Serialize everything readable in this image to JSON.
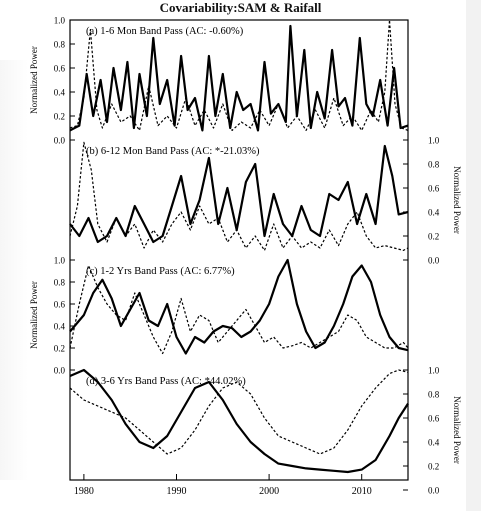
{
  "chart_data": {
    "type": "line",
    "title": "Covariability:SAM & Raifall",
    "xlim": [
      1978.5,
      2015
    ],
    "xticks": [
      1980,
      1990,
      2000,
      2010
    ],
    "panels": [
      {
        "label": "(a) 1-6 Mon Band Pass (AC: -0.60%)",
        "ylabel": "Normalized Power",
        "yaxis_side": "left",
        "ylim": [
          0,
          1
        ],
        "yticks": [
          "0.0",
          "0.2",
          "0.4",
          "0.6",
          "0.8",
          "1.0"
        ],
        "series": [
          {
            "style": "solid",
            "x": [
              1978.5,
              1979.5,
              1980.3,
              1981,
              1981.8,
              1982.5,
              1983.2,
              1984,
              1984.7,
              1985.4,
              1986,
              1986.8,
              1987.5,
              1988.2,
              1989,
              1989.8,
              1990.5,
              1991.2,
              1992,
              1992.8,
              1993.5,
              1994.2,
              1995,
              1995.8,
              1996.5,
              1997.2,
              1998,
              1998.8,
              1999.5,
              2000.2,
              2001,
              2001.8,
              2002.3,
              2003,
              2003.8,
              2004.5,
              2005.2,
              2006,
              2006.8,
              2007.5,
              2008.2,
              2009,
              2009.8,
              2010.5,
              2011.2,
              2012,
              2012.8,
              2013.5,
              2014.2,
              2015
            ],
            "y": [
              0.08,
              0.12,
              0.55,
              0.2,
              0.5,
              0.15,
              0.6,
              0.25,
              0.65,
              0.1,
              0.55,
              0.2,
              0.85,
              0.3,
              0.5,
              0.12,
              0.7,
              0.25,
              0.35,
              0.08,
              0.7,
              0.2,
              0.55,
              0.1,
              0.4,
              0.25,
              0.3,
              0.08,
              0.65,
              0.22,
              0.3,
              0.15,
              0.95,
              0.2,
              0.75,
              0.1,
              0.4,
              0.18,
              0.75,
              0.28,
              0.35,
              0.12,
              0.85,
              0.3,
              0.2,
              0.5,
              0.12,
              0.6,
              0.1,
              0.12
            ]
          },
          {
            "style": "dashed",
            "x": [
              1978.5,
              1979.3,
              1980,
              1980.7,
              1981.4,
              1982,
              1983,
              1984,
              1985,
              1986,
              1987,
              1988,
              1989,
              1990,
              1991,
              1992,
              1993,
              1994,
              1995,
              1996,
              1997,
              1998,
              1999,
              2000,
              2001,
              2002,
              2003,
              2004,
              2005,
              2006,
              2007,
              2008,
              2009,
              2010,
              2011,
              2011.8,
              2012.5,
              2013,
              2013.6,
              2014.3,
              2015
            ],
            "y": [
              0.1,
              0.12,
              0.35,
              0.92,
              0.25,
              0.1,
              0.3,
              0.15,
              0.2,
              0.08,
              0.45,
              0.12,
              0.2,
              0.1,
              0.35,
              0.12,
              0.25,
              0.1,
              0.3,
              0.08,
              0.15,
              0.1,
              0.25,
              0.12,
              0.3,
              0.1,
              0.2,
              0.08,
              0.25,
              0.1,
              0.35,
              0.12,
              0.2,
              0.08,
              0.25,
              0.15,
              0.4,
              1.0,
              0.3,
              0.1,
              0.08
            ]
          }
        ]
      },
      {
        "label": "(b) 6-12 Mon Band Pass (AC: *-21.03%)",
        "ylabel": "Normalized Power",
        "yaxis_side": "right",
        "ylim": [
          0,
          1
        ],
        "yticks": [
          "0.0",
          "0.2",
          "0.4",
          "0.6",
          "0.8",
          "1.0"
        ],
        "series": [
          {
            "style": "solid",
            "x": [
              1978.5,
              1979.5,
              1980.5,
              1981.5,
              1982.5,
              1983.5,
              1984.5,
              1985.5,
              1986.5,
              1987.5,
              1988.5,
              1989.5,
              1990.5,
              1991.5,
              1992.5,
              1993.5,
              1994.5,
              1995.5,
              1996.5,
              1997.5,
              1998.5,
              1999.5,
              2000.5,
              2001.5,
              2002.5,
              2003.5,
              2004.5,
              2005.5,
              2006.5,
              2007.5,
              2008.5,
              2009.5,
              2010.5,
              2011.5,
              2012.5,
              2013.3,
              2014,
              2015
            ],
            "y": [
              0.3,
              0.2,
              0.35,
              0.15,
              0.2,
              0.35,
              0.2,
              0.45,
              0.3,
              0.15,
              0.2,
              0.45,
              0.7,
              0.3,
              0.5,
              0.85,
              0.3,
              0.6,
              0.25,
              0.65,
              0.8,
              0.2,
              0.55,
              0.3,
              0.2,
              0.45,
              0.25,
              0.2,
              0.55,
              0.5,
              0.65,
              0.3,
              0.55,
              0.3,
              0.95,
              0.7,
              0.38,
              0.4
            ]
          },
          {
            "style": "dashed",
            "x": [
              1978.5,
              1979.3,
              1980,
              1980.8,
              1981.5,
              1982.5,
              1983.5,
              1984.5,
              1985.5,
              1986.5,
              1987.5,
              1988.5,
              1989.5,
              1990.5,
              1991.5,
              1992.5,
              1993.5,
              1994.5,
              1995.5,
              1996.5,
              1997.5,
              1998.5,
              1999.5,
              2000.5,
              2001.5,
              2002.5,
              2003.5,
              2004.5,
              2005.5,
              2006.5,
              2007.5,
              2008.5,
              2009.5,
              2010.5,
              2011.5,
              2012.5,
              2013.5,
              2014.5,
              2015
            ],
            "y": [
              0.2,
              0.45,
              0.98,
              0.75,
              0.3,
              0.15,
              0.35,
              0.2,
              0.3,
              0.1,
              0.25,
              0.15,
              0.3,
              0.4,
              0.25,
              0.45,
              0.3,
              0.35,
              0.15,
              0.25,
              0.1,
              0.2,
              0.08,
              0.3,
              0.1,
              0.2,
              0.1,
              0.15,
              0.1,
              0.25,
              0.12,
              0.3,
              0.4,
              0.2,
              0.1,
              0.12,
              0.1,
              0.08,
              0.1
            ]
          }
        ]
      },
      {
        "label": "(c) 1-2 Yrs Band Pass (AC: 6.77%)",
        "ylabel": "Normalized Power",
        "yaxis_side": "left",
        "ylim": [
          0,
          1
        ],
        "yticks": [
          "0.0",
          "0.2",
          "0.4",
          "0.6",
          "0.8",
          "1.0"
        ],
        "series": [
          {
            "style": "solid",
            "x": [
              1978.5,
              1980,
              1981,
              1982,
              1983,
              1984,
              1985,
              1986,
              1987,
              1988,
              1989,
              1990,
              1991,
              1992,
              1993,
              1994,
              1995,
              1996,
              1997,
              1998,
              1999,
              2000,
              2001,
              2002,
              2003,
              2004,
              2005,
              2006,
              2007,
              2008,
              2009,
              2010,
              2011,
              2012,
              2013,
              2014,
              2015
            ],
            "y": [
              0.35,
              0.5,
              0.7,
              0.82,
              0.65,
              0.4,
              0.55,
              0.7,
              0.45,
              0.4,
              0.6,
              0.3,
              0.15,
              0.3,
              0.25,
              0.35,
              0.4,
              0.38,
              0.3,
              0.35,
              0.45,
              0.6,
              0.85,
              1.0,
              0.6,
              0.35,
              0.2,
              0.25,
              0.4,
              0.6,
              0.85,
              0.95,
              0.8,
              0.5,
              0.3,
              0.2,
              0.18
            ]
          },
          {
            "style": "dashed",
            "x": [
              1978.5,
              1979.5,
              1980.5,
              1981.5,
              1982.5,
              1983.5,
              1984.5,
              1985.5,
              1986.5,
              1987.5,
              1988.5,
              1989.5,
              1990.5,
              1991.5,
              1992.5,
              1993.5,
              1994.5,
              1995.5,
              1996.5,
              1997.5,
              1998.5,
              1999.5,
              2000.5,
              2001.5,
              2002.5,
              2003.5,
              2004.5,
              2005.5,
              2006.5,
              2007.5,
              2008.5,
              2009.5,
              2010.5,
              2011.5,
              2012.5,
              2013.5,
              2014.5,
              2015
            ],
            "y": [
              0.2,
              0.6,
              0.95,
              0.75,
              0.6,
              0.5,
              0.45,
              0.7,
              0.5,
              0.3,
              0.15,
              0.35,
              0.65,
              0.35,
              0.5,
              0.45,
              0.25,
              0.35,
              0.45,
              0.55,
              0.4,
              0.25,
              0.3,
              0.2,
              0.22,
              0.25,
              0.2,
              0.25,
              0.3,
              0.35,
              0.5,
              0.45,
              0.3,
              0.25,
              0.2,
              0.2,
              0.25,
              0.2
            ]
          }
        ]
      },
      {
        "label": "(d) 3-6 Yrs Band Pass (AC: *44.02%)",
        "ylabel": "Normalized Power",
        "yaxis_side": "right",
        "ylim": [
          0,
          1
        ],
        "yticks": [
          "0.0",
          "0.2",
          "0.4",
          "0.6",
          "0.8",
          "1.0"
        ],
        "series": [
          {
            "style": "solid",
            "x": [
              1978.5,
              1980,
              1981.5,
              1983,
              1984.5,
              1986,
              1987.5,
              1989,
              1990.5,
              1992,
              1993.5,
              1995,
              1996.5,
              1998,
              1999.5,
              2001,
              2002.5,
              2004,
              2005.5,
              2007,
              2008.5,
              2010,
              2011.5,
              2013,
              2014,
              2015
            ],
            "y": [
              0.95,
              1.0,
              0.9,
              0.75,
              0.55,
              0.4,
              0.35,
              0.45,
              0.65,
              0.85,
              0.9,
              0.75,
              0.55,
              0.4,
              0.3,
              0.22,
              0.2,
              0.18,
              0.17,
              0.16,
              0.15,
              0.17,
              0.25,
              0.45,
              0.6,
              0.72
            ]
          },
          {
            "style": "dashed",
            "x": [
              1978.5,
              1980,
              1981.5,
              1983,
              1984.5,
              1986,
              1987.5,
              1989,
              1990.5,
              1992,
              1993.5,
              1995,
              1996.5,
              1998,
              1999.5,
              2001,
              2002.5,
              2004,
              2005.5,
              2007,
              2008.5,
              2010,
              2011.5,
              2013,
              2014,
              2015
            ],
            "y": [
              0.85,
              0.75,
              0.7,
              0.65,
              0.6,
              0.5,
              0.4,
              0.3,
              0.35,
              0.5,
              0.7,
              0.85,
              0.9,
              0.8,
              0.6,
              0.45,
              0.4,
              0.35,
              0.3,
              0.35,
              0.5,
              0.7,
              0.85,
              0.97,
              1.0,
              0.98
            ]
          }
        ]
      }
    ]
  }
}
